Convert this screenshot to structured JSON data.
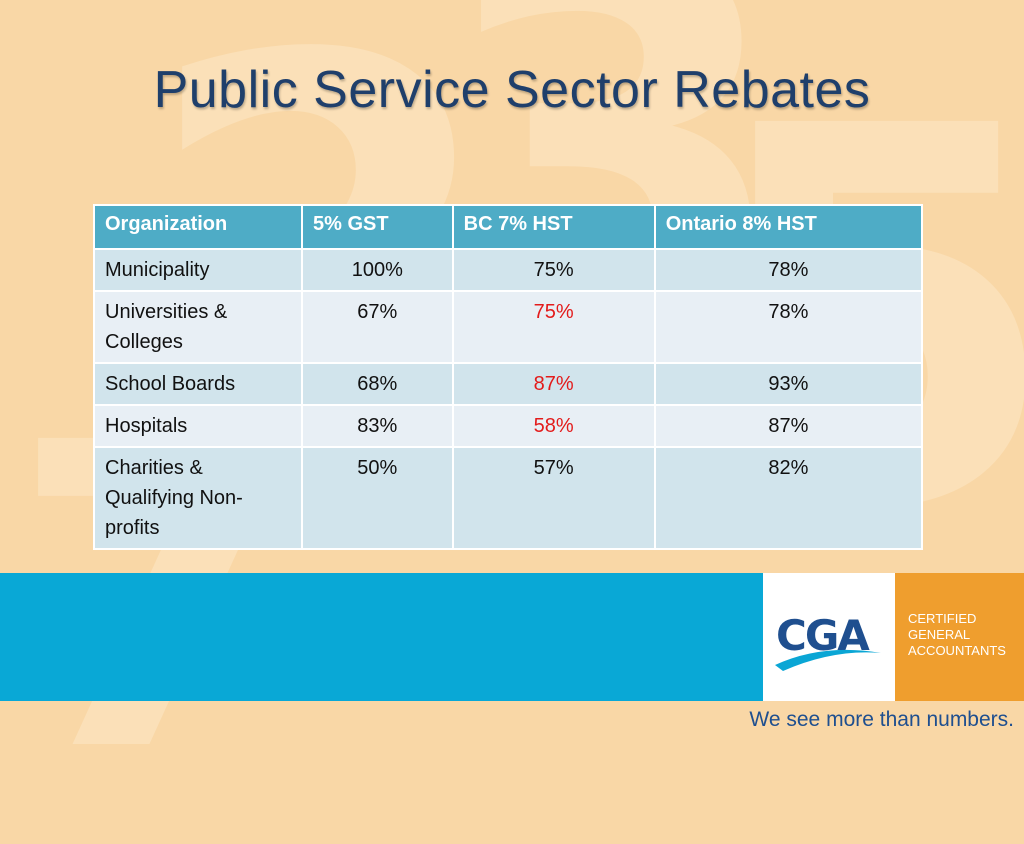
{
  "slide": {
    "title": "Public Service Sector Rebates",
    "background_digits": [
      "2",
      "3",
      "5",
      "7"
    ]
  },
  "table": {
    "headers": [
      "Organization",
      "5% GST",
      "BC 7% HST",
      "Ontario 8% HST"
    ],
    "rows": [
      [
        "Municipality",
        "100%",
        "75%",
        "78%"
      ],
      [
        "Universities & Colleges",
        "67%",
        "75%",
        "78%"
      ],
      [
        "School Boards",
        "68%",
        "87%",
        "93%"
      ],
      [
        "Hospitals",
        "83%",
        "58%",
        "87%"
      ],
      [
        "Charities & Qualifying Non-profits",
        "50%",
        "57%",
        "82%"
      ]
    ],
    "highlighted_cells_note_color": "#e31b1b"
  },
  "footer": {
    "logo_text": "CGA",
    "org_name_lines": [
      "CERTIFIED",
      "GENERAL",
      "ACCOUNTANTS"
    ],
    "tagline": "We see more than numbers."
  },
  "colors": {
    "header_bg": "#4eacc6",
    "band_blue": "#09a8d6",
    "orange": "#ef9e2e",
    "title": "#1f3f6b"
  }
}
